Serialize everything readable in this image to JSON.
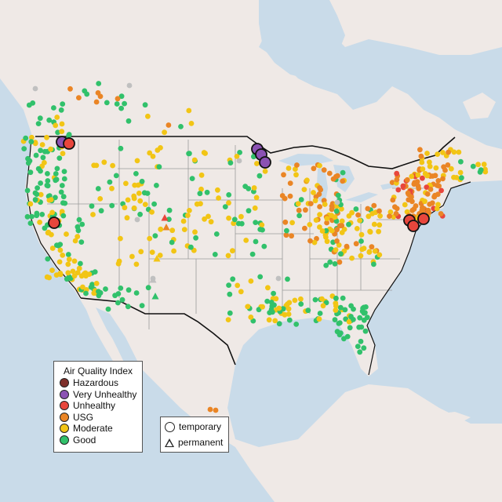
{
  "map": {
    "land_color": "#efe9e6",
    "water_color": "#c9dbe9",
    "state_border_color": "#9a9a9a",
    "country_border_color": "#111111"
  },
  "legend": {
    "title": "Air Quality Index",
    "categories": [
      {
        "label": "Hazardous",
        "color": "#7e2f2a"
      },
      {
        "label": "Very Unhealthy",
        "color": "#8b52b3"
      },
      {
        "label": "Unhealthy",
        "color": "#e8463c"
      },
      {
        "label": "USG",
        "color": "#ea8525"
      },
      {
        "label": "Moderate",
        "color": "#f2c515"
      },
      {
        "label": "Good",
        "color": "#31c16b"
      }
    ],
    "grey_color": "#c0c0c0"
  },
  "monitor_types": {
    "temporary": "temporary",
    "permanent": "permanent"
  }
}
